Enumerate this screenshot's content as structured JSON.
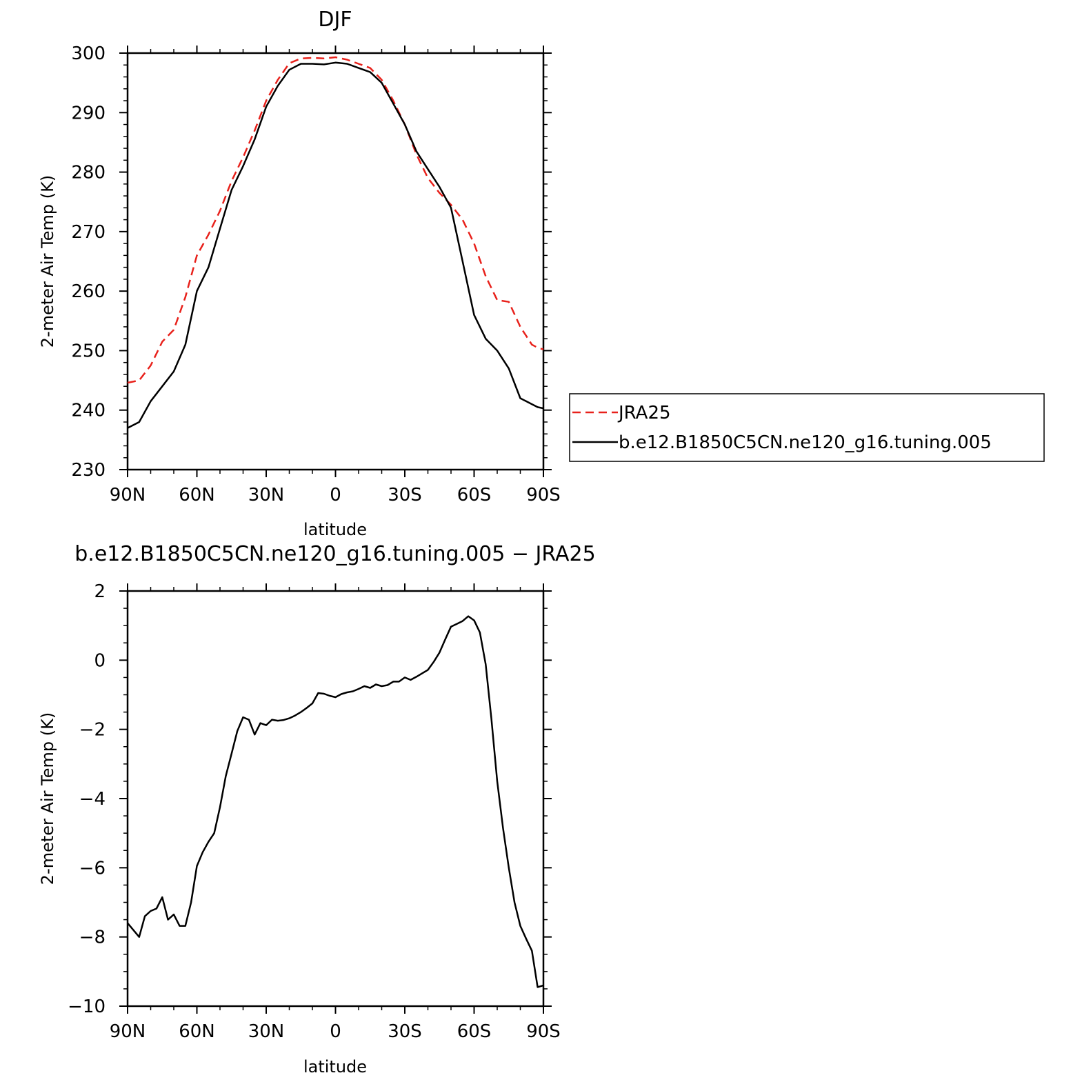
{
  "chart_data": [
    {
      "type": "line",
      "title": "DJF",
      "xlabel": "latitude",
      "ylabel": "2-meter Air Temp (K)",
      "xlim": [
        90,
        -90
      ],
      "ylim": [
        230,
        300
      ],
      "xticks": [
        {
          "value": 90,
          "label": "90N"
        },
        {
          "value": 60,
          "label": "60N"
        },
        {
          "value": 30,
          "label": "30N"
        },
        {
          "value": 0,
          "label": "0"
        },
        {
          "value": -30,
          "label": "30S"
        },
        {
          "value": -60,
          "label": "60S"
        },
        {
          "value": -90,
          "label": "90S"
        }
      ],
      "yticks": [
        {
          "value": 300,
          "label": "300"
        },
        {
          "value": 290,
          "label": "290"
        },
        {
          "value": 280,
          "label": "280"
        },
        {
          "value": 270,
          "label": "270"
        },
        {
          "value": 260,
          "label": "260"
        },
        {
          "value": 250,
          "label": "250"
        },
        {
          "value": 240,
          "label": "240"
        },
        {
          "value": 230,
          "label": "230"
        }
      ],
      "legend_placement": "right",
      "series": [
        {
          "name": "JRA25",
          "color": "#e8211b",
          "dash": true,
          "x": [
            90,
            85,
            80,
            75,
            70,
            65,
            60,
            55,
            50,
            45,
            40,
            35,
            30,
            25,
            20,
            15,
            10,
            5,
            0,
            -5,
            -10,
            -15,
            -20,
            -25,
            -30,
            -35,
            -40,
            -45,
            -50,
            -55,
            -60,
            -65,
            -70,
            -75,
            -80,
            -85,
            -87.5,
            -90
          ],
          "values": [
            244.6,
            245.0,
            247.5,
            251.5,
            253.5,
            259.0,
            266.0,
            269.5,
            273.5,
            278.5,
            282.5,
            287.0,
            292.0,
            295.5,
            298.3,
            299.1,
            299.2,
            299.1,
            299.3,
            298.9,
            298.2,
            297.5,
            295.5,
            292.0,
            288.0,
            283.0,
            279.0,
            276.5,
            274.5,
            272.0,
            268.0,
            262.5,
            258.5,
            258.2,
            254.0,
            251.0,
            250.5,
            250.2
          ]
        },
        {
          "name": "b.e12.B1850C5CN.ne120_g16.tuning.005",
          "color": "#000000",
          "dash": false,
          "x": [
            90,
            85,
            80,
            75,
            70,
            65,
            60,
            55,
            50,
            45,
            40,
            35,
            30,
            25,
            20,
            15,
            10,
            5,
            0,
            -5,
            -10,
            -15,
            -20,
            -25,
            -30,
            -35,
            -40,
            -45,
            -50,
            -55,
            -60,
            -65,
            -70,
            -75,
            -80,
            -85,
            -87.5,
            -90
          ],
          "values": [
            237.0,
            238.0,
            241.5,
            244.0,
            246.5,
            251.0,
            260.0,
            264.0,
            270.5,
            277.0,
            281.0,
            285.5,
            291.0,
            294.5,
            297.2,
            298.2,
            298.2,
            298.1,
            298.4,
            298.2,
            297.5,
            296.8,
            295.0,
            291.5,
            288.0,
            283.5,
            280.5,
            277.5,
            274.0,
            265.0,
            256.0,
            252.0,
            250.0,
            247.0,
            242.0,
            241.0,
            240.5,
            240.3
          ]
        }
      ]
    },
    {
      "type": "line",
      "title": "b.e12.B1850C5CN.ne120_g16.tuning.005 − JRA25",
      "xlabel": "latitude",
      "ylabel": "2-meter Air Temp (K)",
      "xlim": [
        90,
        -90
      ],
      "ylim": [
        -10,
        2
      ],
      "xticks": [
        {
          "value": 90,
          "label": "90N"
        },
        {
          "value": 60,
          "label": "60N"
        },
        {
          "value": 30,
          "label": "30N"
        },
        {
          "value": 0,
          "label": "0"
        },
        {
          "value": -30,
          "label": "30S"
        },
        {
          "value": -60,
          "label": "60S"
        },
        {
          "value": -90,
          "label": "90S"
        }
      ],
      "yticks": [
        {
          "value": 2,
          "label": "2"
        },
        {
          "value": 0,
          "label": "0"
        },
        {
          "value": -2,
          "label": "−2"
        },
        {
          "value": -4,
          "label": "−4"
        },
        {
          "value": -6,
          "label": "−6"
        },
        {
          "value": -8,
          "label": "−8"
        },
        {
          "value": -10,
          "label": "−10"
        }
      ],
      "series": [
        {
          "color": "#000000",
          "dash": false,
          "x": [
            90,
            85,
            82.5,
            80,
            77.5,
            75,
            72.5,
            70,
            67.5,
            65,
            62.5,
            60,
            57.5,
            55,
            52.5,
            50,
            47.5,
            45,
            42.5,
            40,
            37.5,
            35,
            32.5,
            30,
            27.5,
            25,
            22.5,
            20,
            17.5,
            15,
            12.5,
            10,
            7.5,
            5,
            2.5,
            0,
            -2.5,
            -5,
            -7.5,
            -10,
            -12.5,
            -15,
            -17.5,
            -20,
            -22.5,
            -25,
            -27.5,
            -30,
            -32.5,
            -35,
            -37.5,
            -40,
            -42.5,
            -45,
            -47.5,
            -50,
            -52.5,
            -55,
            -57.5,
            -60,
            -62.5,
            -65,
            -67.5,
            -70,
            -72.5,
            -75,
            -77.5,
            -80,
            -82.5,
            -85,
            -87.5,
            -90
          ],
          "values": [
            -7.6,
            -8.0,
            -7.4,
            -7.25,
            -7.18,
            -6.85,
            -7.5,
            -7.35,
            -7.68,
            -7.68,
            -7.0,
            -5.95,
            -5.55,
            -5.25,
            -5.0,
            -4.25,
            -3.35,
            -2.7,
            -2.05,
            -1.65,
            -1.72,
            -2.15,
            -1.82,
            -1.88,
            -1.72,
            -1.75,
            -1.73,
            -1.68,
            -1.6,
            -1.5,
            -1.38,
            -1.25,
            -0.95,
            -0.97,
            -1.03,
            -1.07,
            -0.98,
            -0.93,
            -0.9,
            -0.83,
            -0.75,
            -0.8,
            -0.7,
            -0.75,
            -0.72,
            -0.62,
            -0.62,
            -0.5,
            -0.57,
            -0.48,
            -0.38,
            -0.28,
            -0.05,
            0.22,
            0.6,
            0.97,
            1.05,
            1.13,
            1.27,
            1.15,
            0.8,
            -0.12,
            -1.7,
            -3.5,
            -4.85,
            -6.0,
            -7.0,
            -7.68,
            -8.05,
            -8.4,
            -9.45,
            -9.4
          ]
        }
      ]
    }
  ]
}
